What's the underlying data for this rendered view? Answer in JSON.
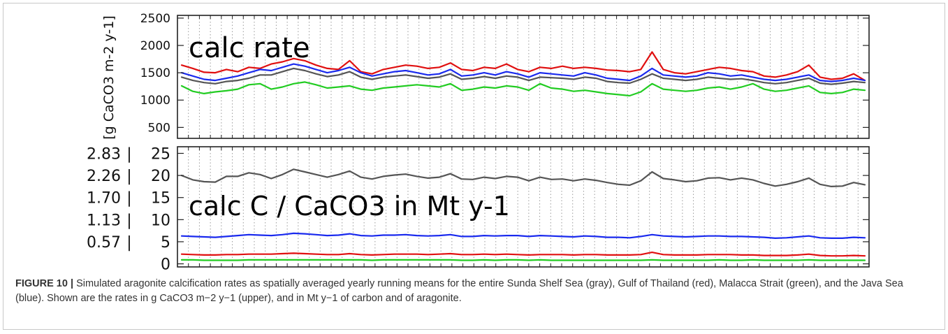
{
  "figure": {
    "caption_label": "FIGURE 10 |",
    "caption_text": "Simulated aragonite calcification rates as spatially averaged yearly running means for the entire Sunda Shelf Sea (gray), Gulf of Thailand (red), Malacca Strait (green), and the Java Sea (blue). Shown are the rates in g CaCO3 m−2 y−1 (upper), and in Mt y−1 of carbon and of aragonite."
  },
  "chart_data": [
    {
      "type": "line",
      "title": "calc rate",
      "ylabel": "[g CaCO3 m-2 y-1]",
      "ylim": [
        300,
        2550
      ],
      "yticks": [
        500,
        1000,
        1500,
        2000,
        2500
      ],
      "x_range": [
        0,
        1
      ],
      "grid": "vertical dotted",
      "series": [
        {
          "color": "#e01010",
          "values": [
            1640,
            1580,
            1510,
            1500,
            1560,
            1520,
            1600,
            1580,
            1660,
            1700,
            1760,
            1720,
            1640,
            1580,
            1560,
            1720,
            1520,
            1480,
            1560,
            1600,
            1640,
            1620,
            1580,
            1600,
            1680,
            1560,
            1540,
            1600,
            1580,
            1660,
            1560,
            1520,
            1600,
            1580,
            1620,
            1580,
            1600,
            1580,
            1550,
            1540,
            1520,
            1560,
            1880,
            1560,
            1500,
            1480,
            1520,
            1560,
            1600,
            1580,
            1540,
            1520,
            1440,
            1420,
            1460,
            1520,
            1640,
            1420,
            1380,
            1400,
            1480,
            1360
          ]
        },
        {
          "color": "#1a2aee",
          "values": [
            1500,
            1440,
            1380,
            1360,
            1400,
            1440,
            1500,
            1560,
            1540,
            1600,
            1660,
            1620,
            1560,
            1500,
            1540,
            1600,
            1500,
            1440,
            1480,
            1520,
            1540,
            1500,
            1460,
            1480,
            1560,
            1440,
            1460,
            1500,
            1460,
            1520,
            1480,
            1420,
            1500,
            1480,
            1460,
            1440,
            1500,
            1460,
            1400,
            1380,
            1360,
            1440,
            1580,
            1460,
            1440,
            1420,
            1440,
            1500,
            1480,
            1440,
            1460,
            1420,
            1380,
            1360,
            1380,
            1420,
            1460,
            1360,
            1340,
            1360,
            1400,
            1360
          ]
        },
        {
          "color": "#555555",
          "values": [
            1420,
            1360,
            1320,
            1300,
            1340,
            1360,
            1400,
            1460,
            1460,
            1520,
            1580,
            1540,
            1480,
            1430,
            1460,
            1520,
            1420,
            1380,
            1420,
            1440,
            1460,
            1430,
            1400,
            1420,
            1480,
            1380,
            1400,
            1430,
            1400,
            1440,
            1420,
            1360,
            1420,
            1410,
            1400,
            1380,
            1420,
            1400,
            1340,
            1320,
            1310,
            1380,
            1480,
            1400,
            1380,
            1360,
            1380,
            1420,
            1400,
            1380,
            1390,
            1360,
            1320,
            1300,
            1320,
            1360,
            1400,
            1310,
            1290,
            1310,
            1340,
            1320
          ]
        },
        {
          "color": "#22cc22",
          "values": [
            1260,
            1160,
            1120,
            1150,
            1170,
            1200,
            1280,
            1300,
            1200,
            1240,
            1300,
            1330,
            1280,
            1220,
            1240,
            1260,
            1200,
            1180,
            1220,
            1240,
            1260,
            1280,
            1260,
            1240,
            1300,
            1180,
            1200,
            1240,
            1220,
            1260,
            1240,
            1180,
            1300,
            1220,
            1200,
            1160,
            1180,
            1150,
            1120,
            1100,
            1080,
            1150,
            1300,
            1200,
            1180,
            1160,
            1180,
            1220,
            1240,
            1200,
            1240,
            1300,
            1200,
            1160,
            1180,
            1220,
            1260,
            1140,
            1120,
            1140,
            1200,
            1180
          ]
        }
      ]
    },
    {
      "type": "line",
      "title": "calc C / CaCO3 in Mt y-1",
      "ylim": [
        -0.7,
        26.5
      ],
      "yticks_right": [
        0,
        5,
        10,
        15,
        20,
        25
      ],
      "yticks_left": [
        "0.57",
        "1.13",
        "1.70",
        "2.26",
        "2.83"
      ],
      "x_range": [
        0,
        1
      ],
      "grid": "vertical dotted",
      "series": [
        {
          "color": "#555555",
          "values": [
            20.0,
            19.0,
            18.6,
            18.5,
            19.8,
            19.8,
            20.6,
            20.2,
            19.3,
            20.2,
            21.4,
            20.8,
            20.2,
            19.6,
            20.2,
            21.0,
            19.6,
            19.2,
            19.8,
            20.1,
            20.3,
            19.8,
            19.4,
            19.6,
            20.4,
            19.2,
            19.1,
            19.6,
            19.3,
            19.8,
            19.6,
            18.8,
            19.6,
            19.1,
            19.2,
            18.8,
            19.2,
            18.9,
            18.4,
            18.0,
            17.8,
            18.8,
            20.8,
            19.3,
            19.0,
            18.6,
            18.8,
            19.4,
            19.5,
            19.0,
            19.4,
            19.0,
            18.2,
            17.6,
            18.0,
            18.6,
            19.4,
            18.0,
            17.5,
            17.6,
            18.4,
            17.9
          ]
        },
        {
          "color": "#1a2aee",
          "values": [
            6.3,
            6.2,
            6.1,
            6.0,
            6.2,
            6.4,
            6.6,
            6.5,
            6.4,
            6.6,
            6.9,
            6.8,
            6.6,
            6.4,
            6.5,
            6.8,
            6.4,
            6.3,
            6.5,
            6.5,
            6.6,
            6.4,
            6.3,
            6.4,
            6.6,
            6.2,
            6.2,
            6.4,
            6.3,
            6.4,
            6.4,
            6.2,
            6.4,
            6.3,
            6.2,
            6.1,
            6.3,
            6.2,
            6.0,
            6.0,
            5.9,
            6.2,
            6.6,
            6.3,
            6.2,
            6.1,
            6.2,
            6.3,
            6.3,
            6.2,
            6.2,
            6.1,
            6.0,
            5.8,
            5.9,
            6.1,
            6.3,
            5.9,
            5.8,
            5.8,
            6.0,
            5.9
          ]
        },
        {
          "color": "#e01010",
          "values": [
            2.2,
            2.1,
            2.0,
            2.0,
            2.1,
            2.1,
            2.2,
            2.2,
            2.2,
            2.3,
            2.4,
            2.3,
            2.2,
            2.1,
            2.1,
            2.3,
            2.1,
            2.0,
            2.1,
            2.2,
            2.2,
            2.2,
            2.1,
            2.2,
            2.3,
            2.1,
            2.1,
            2.2,
            2.1,
            2.2,
            2.1,
            2.0,
            2.1,
            2.1,
            2.1,
            2.0,
            2.1,
            2.1,
            2.0,
            2.0,
            2.0,
            2.1,
            2.6,
            2.1,
            2.0,
            2.0,
            2.0,
            2.1,
            2.1,
            2.1,
            2.0,
            2.0,
            1.9,
            1.9,
            1.9,
            2.0,
            2.2,
            1.9,
            1.8,
            1.8,
            1.9,
            1.8
          ]
        },
        {
          "color": "#22cc22",
          "values": [
            0.9,
            0.9,
            0.8,
            0.8,
            0.8,
            0.8,
            0.9,
            0.9,
            0.9,
            0.9,
            0.9,
            0.9,
            0.9,
            0.9,
            0.9,
            0.9,
            0.9,
            0.8,
            0.9,
            0.9,
            0.9,
            0.9,
            0.9,
            0.9,
            0.9,
            0.8,
            0.8,
            0.9,
            0.8,
            0.9,
            0.9,
            0.8,
            0.9,
            0.8,
            0.8,
            0.8,
            0.8,
            0.8,
            0.8,
            0.8,
            0.8,
            0.8,
            0.9,
            0.8,
            0.8,
            0.8,
            0.8,
            0.8,
            0.9,
            0.8,
            0.8,
            0.9,
            0.8,
            0.8,
            0.8,
            0.8,
            0.9,
            0.8,
            0.8,
            0.8,
            0.8,
            0.8
          ]
        }
      ]
    }
  ]
}
